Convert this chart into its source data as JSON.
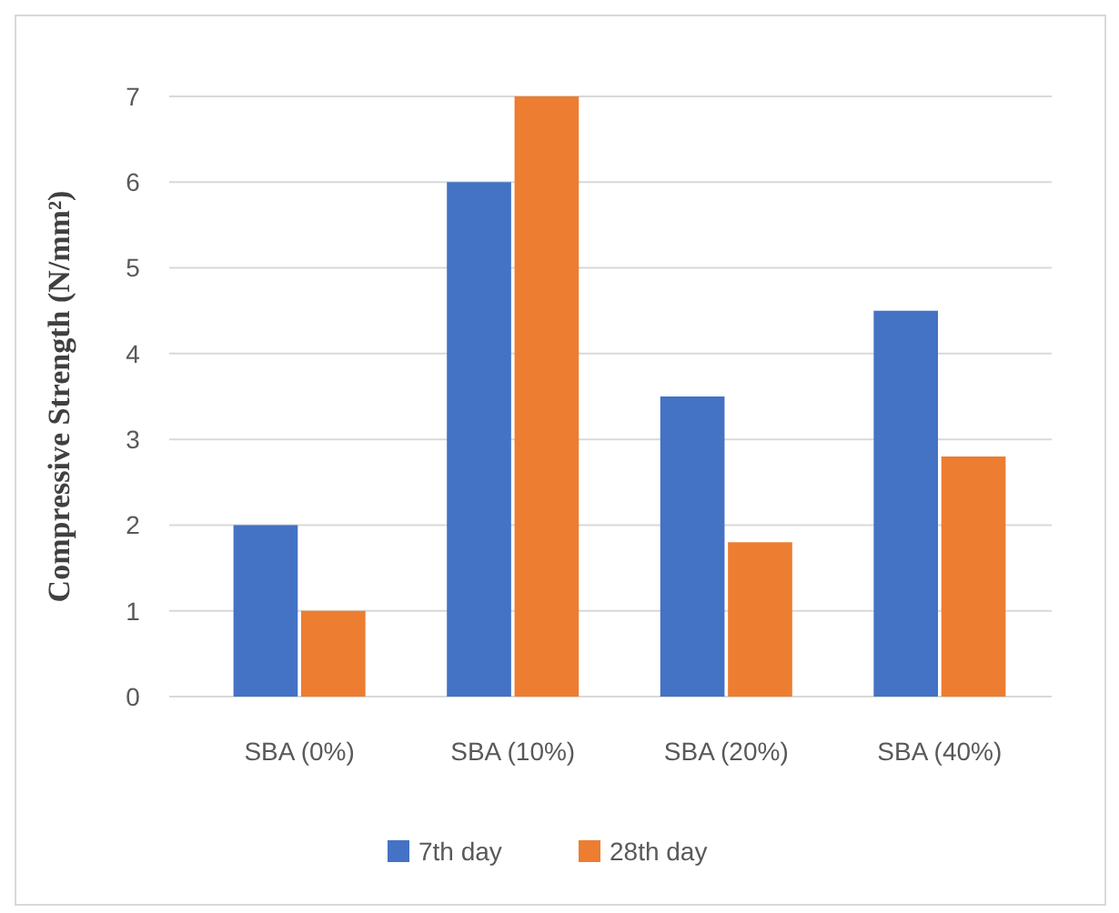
{
  "chart_data": {
    "type": "bar",
    "ylabel": "Compressive Strength (N/mm²)",
    "categories": [
      "SBA (0%)",
      "SBA (10%)",
      "SBA (20%)",
      "SBA (40%)"
    ],
    "series": [
      {
        "name": "7th day",
        "color": "#4472c4",
        "values": [
          2,
          6,
          3.5,
          4.5
        ]
      },
      {
        "name": "28th day",
        "color": "#ed7d31",
        "values": [
          1,
          7,
          1.8,
          2.8
        ]
      }
    ],
    "ylim": [
      0,
      7
    ],
    "yticks": [
      0,
      1,
      2,
      3,
      4,
      5,
      6,
      7
    ],
    "grid": "y",
    "legend": "bottom"
  }
}
